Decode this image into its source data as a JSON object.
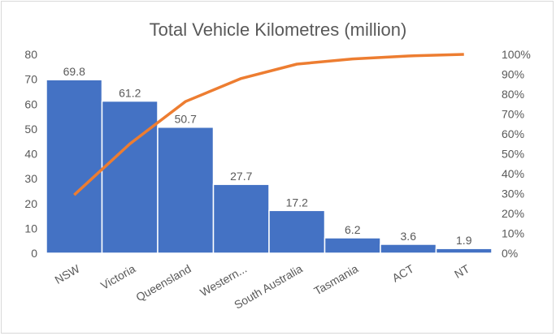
{
  "chart_data": {
    "type": "bar",
    "subtype": "pareto",
    "title": "Total Vehicle Kilometres (million)",
    "categories": [
      "NSW",
      "Victoria",
      "Queensland",
      "Western...",
      "South Australia",
      "Tasmania",
      "ACT",
      "NT"
    ],
    "series": [
      {
        "type": "bar",
        "axis": "left",
        "values": [
          69.8,
          61.2,
          50.7,
          27.7,
          17.2,
          6.2,
          3.6,
          1.9
        ],
        "color": "#4472C4",
        "data_labels": [
          "69.8",
          "61.2",
          "50.7",
          "27.7",
          "17.2",
          "6.2",
          "3.6",
          "1.9"
        ]
      },
      {
        "type": "line",
        "axis": "right",
        "values": [
          29.3,
          55.0,
          76.3,
          87.9,
          95.1,
          97.7,
          99.2,
          100
        ],
        "unit": "%",
        "color": "#ED7D31"
      }
    ],
    "ylim": [
      0,
      80
    ],
    "yticks": [
      "0",
      "10",
      "20",
      "30",
      "40",
      "50",
      "60",
      "70",
      "80"
    ],
    "y2lim": [
      0,
      100
    ],
    "y2ticks": [
      "0%",
      "10%",
      "20%",
      "30%",
      "40%",
      "50%",
      "60%",
      "70%",
      "80%",
      "90%",
      "100%"
    ],
    "grid": false,
    "legend": "none"
  }
}
